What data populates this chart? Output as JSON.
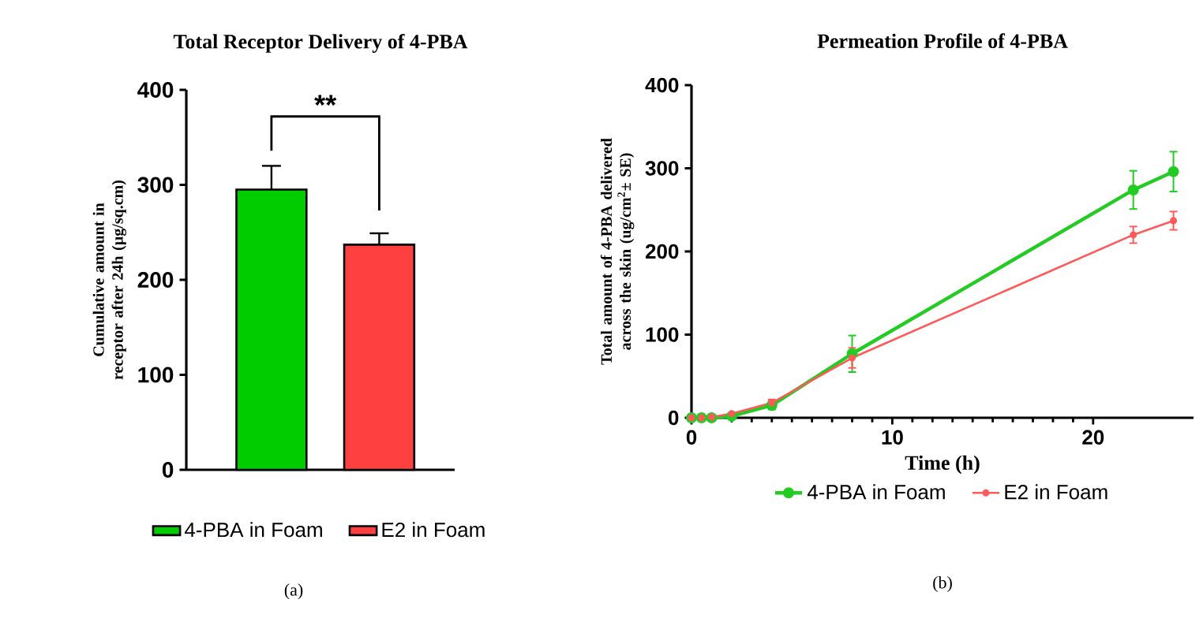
{
  "chart_data": [
    {
      "type": "bar",
      "title": "Total Receptor Delivery of 4-PBA",
      "ylabel": "Cumulative amount in receptor after 24h (µg/sq.cm)",
      "categories": [
        null,
        null
      ],
      "series": [
        {
          "name": "4-PBA in Foam",
          "color": "#00cc00",
          "values": [
            295,
            null
          ],
          "errors": [
            25,
            null
          ]
        },
        {
          "name": "E2 in Foam",
          "color": "#ff4040",
          "values": [
            null,
            237
          ],
          "errors": [
            null,
            12
          ]
        }
      ],
      "ylim": [
        0,
        400
      ],
      "yticks": [
        0,
        100,
        200,
        300,
        400
      ],
      "legend": "bottom",
      "annotations": [
        "**",
        "(a)"
      ]
    },
    {
      "type": "line",
      "title": "Permeation Profile of 4-PBA",
      "xlabel": "Time (h)",
      "ylabel": "Total amount of 4-PBA delivered across the skin (ug/cm$^{2}$± SE)",
      "x": [
        0,
        0.5,
        1,
        2,
        4,
        8,
        22,
        24
      ],
      "series": [
        {
          "name": "4-PBA in Foam",
          "color": "#22cc22",
          "values": [
            0,
            0,
            0,
            2,
            15,
            77,
            274,
            296
          ],
          "errors": [
            null,
            null,
            null,
            null,
            5,
            22,
            23,
            24
          ]
        },
        {
          "name": "E2 in Foam",
          "color": "#ff5a5a",
          "values": [
            0,
            0,
            1,
            5,
            18,
            72,
            220,
            237
          ],
          "errors": [
            null,
            null,
            null,
            null,
            4,
            12,
            10,
            11
          ]
        }
      ],
      "xlim": [
        0,
        25
      ],
      "xticks": [
        0,
        10,
        20
      ],
      "ylim": [
        0,
        400
      ],
      "yticks": [
        0,
        100,
        200,
        300,
        400
      ],
      "legend": "bottom",
      "marker": "circle",
      "annotations": [
        "(b)"
      ]
    }
  ]
}
